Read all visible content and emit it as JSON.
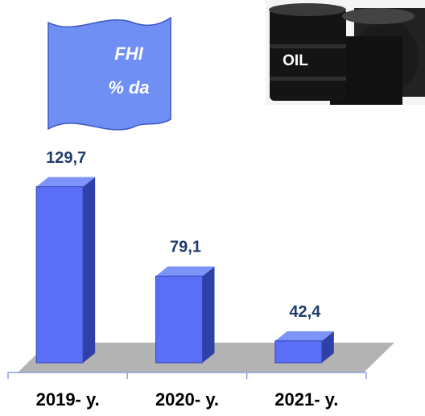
{
  "chart_data": {
    "type": "bar3d",
    "title": "FHI",
    "subtitle": "% da",
    "annotation": "OIL",
    "categories": [
      "2019- y.",
      "2020- y.",
      "2021- y."
    ],
    "values": [
      129.7,
      79.1,
      42.4
    ],
    "value_labels": [
      "129,7",
      "79,1",
      "42,4"
    ],
    "color": "#5a6ff5",
    "ylim": [
      30,
      135
    ]
  }
}
